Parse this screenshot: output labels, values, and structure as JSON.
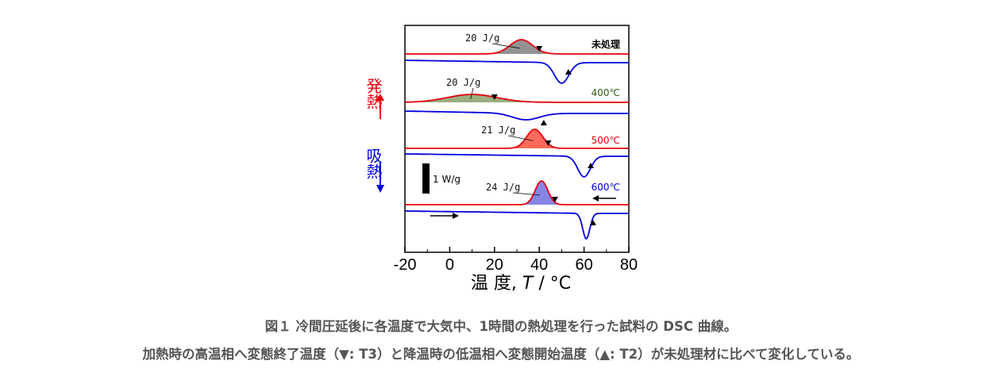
{
  "chart_data": {
    "type": "line",
    "xlabel": "温 度, T / °C",
    "xlabel_parts": {
      "prefix": "温 度, ",
      "var": "T",
      "suffix": " / °C"
    },
    "xlim": [
      -20,
      80
    ],
    "xticks": [
      "-20",
      "0",
      "20",
      "40",
      "60",
      "80"
    ],
    "scale_bar_label": "1 W/g",
    "exo_label": "発熱",
    "endo_label": "吸熱",
    "series": [
      {
        "name": "未処理",
        "color": "#000000",
        "heating_color": "#e8000b",
        "cooling_color": "#0000dd",
        "area_label": "20 J/g",
        "peak_heating": 32,
        "peak_cooling": 50,
        "T3": 40,
        "T2": 53,
        "fill": "#808080"
      },
      {
        "name": "400℃",
        "color": "#2e5e10",
        "heating_color": "#e8000b",
        "cooling_color": "#0000dd",
        "area_label": "20 J/g",
        "peak_heating": 10,
        "peak_cooling": 34,
        "T3": 20,
        "T2": 42,
        "fill": "#8aa06a"
      },
      {
        "name": "500℃",
        "color": "#e8000b",
        "heating_color": "#e8000b",
        "cooling_color": "#0000dd",
        "area_label": "21 J/g",
        "peak_heating": 38,
        "peak_cooling": 60,
        "T3": 44,
        "T2": 63,
        "fill": "#ff5040"
      },
      {
        "name": "600℃",
        "color": "#0000dd",
        "heating_color": "#e8000b",
        "cooling_color": "#0000dd",
        "area_label": "24 J/g",
        "peak_heating": 41,
        "peak_cooling": 61,
        "T3": 47,
        "T2": 64,
        "fill": "#7070e0"
      }
    ]
  },
  "caption": {
    "line1": "図１ 冷間圧延後に各温度で大気中、1時間の熱処理を行った試料の DSC 曲線。",
    "line2": "加熱時の高温相へ変態終了温度（▼: T3）と降温時の低温相へ変態開始温度（▲: T2）が未処理材に比べて変化している。"
  }
}
